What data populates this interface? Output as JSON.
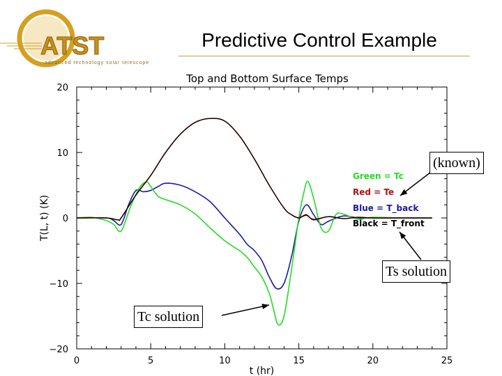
{
  "slide": {
    "title": "Predictive Control Example",
    "logo_text": "ATST",
    "logo_tagline": "advanced technology solar telescope"
  },
  "callouts": {
    "known": "(known)",
    "ts_solution": "Ts solution",
    "tc_solution": "Tc solution"
  },
  "colors": {
    "green": "#22dd22",
    "red": "#b01010",
    "blue": "#1a1aa0",
    "black": "#000000",
    "logo_gold": "#d4a020"
  },
  "chart_data": {
    "type": "line",
    "title": "Top and Bottom Surface Temps",
    "xlabel": "t (hr)",
    "ylabel": "T(L, t) (K)",
    "xlim": [
      0,
      25
    ],
    "ylim": [
      -20,
      20
    ],
    "xticks": [
      0,
      5,
      10,
      15,
      20,
      25
    ],
    "yticks": [
      -20,
      -10,
      0,
      10,
      20
    ],
    "legend": [
      "Green = Tc",
      "Red = Te",
      "Blue = T_back",
      "Black = T_front"
    ],
    "legend_position": "right",
    "series": [
      {
        "name": "Green = Tc",
        "color": "#22dd22",
        "x": [
          0,
          1,
          2,
          2.5,
          3,
          3.6,
          4.2,
          4.7,
          5,
          5.5,
          6,
          7,
          8,
          9,
          10,
          11,
          11.5,
          12,
          12.5,
          13,
          13.3,
          13.6,
          14,
          14.5,
          15,
          15.3,
          15.6,
          16,
          16.5,
          17,
          17.5,
          18,
          19,
          20,
          22,
          24
        ],
        "y": [
          0,
          0.1,
          -0.4,
          -1,
          -2,
          1.5,
          4.5,
          5.5,
          4.8,
          3.3,
          2.8,
          2,
          0.6,
          -1.5,
          -3.5,
          -5,
          -6,
          -7.5,
          -9,
          -11.5,
          -14,
          -16.3,
          -15,
          -8,
          0,
          3.5,
          5.6,
          3,
          -1.5,
          -2,
          0.5,
          0.6,
          -0.2,
          0.1,
          0,
          0
        ]
      },
      {
        "name": "Red = Te",
        "color": "#b01010",
        "x": [
          0,
          2,
          2.8,
          3,
          4,
          5,
          6,
          7,
          8,
          9,
          10,
          11,
          12,
          13,
          14,
          14.5,
          15,
          15.5,
          16,
          17,
          18,
          19,
          20,
          22,
          24
        ],
        "y": [
          0,
          0,
          -0.3,
          0,
          3.5,
          6.5,
          10,
          12.8,
          14.6,
          15.2,
          14.8,
          12.5,
          9,
          5,
          1.5,
          0.5,
          0,
          0.5,
          -0.3,
          0.2,
          -0.1,
          0.1,
          0,
          0,
          0
        ]
      },
      {
        "name": "Blue = T_back",
        "color": "#1a1aa0",
        "x": [
          0,
          2,
          2.5,
          3,
          3.5,
          4,
          4.5,
          5,
          5.5,
          6,
          7,
          8,
          9,
          10,
          11,
          11.5,
          12,
          12.5,
          13,
          13.5,
          14,
          14.5,
          15,
          15.5,
          16,
          16.5,
          17,
          18,
          19,
          20,
          22,
          24
        ],
        "y": [
          0,
          0,
          -0.4,
          -1,
          2,
          4.2,
          4,
          4.2,
          4.8,
          5.3,
          5,
          4,
          2.5,
          0,
          -2.5,
          -4,
          -5,
          -6.5,
          -9,
          -10.8,
          -10,
          -6,
          -0.5,
          2,
          0.5,
          -1,
          -0.5,
          0.3,
          0,
          0,
          0,
          0
        ]
      },
      {
        "name": "Black = T_front",
        "color": "#000000",
        "x": [
          0,
          2,
          2.8,
          3,
          4,
          5,
          6,
          7,
          8,
          9,
          10,
          11,
          12,
          13,
          14,
          14.5,
          15,
          15.5,
          16,
          17,
          18,
          19,
          20,
          22,
          24
        ],
        "y": [
          0,
          0,
          -0.3,
          0,
          3.5,
          6.5,
          10,
          12.8,
          14.6,
          15.2,
          14.8,
          12.5,
          9,
          5,
          1.5,
          0.5,
          0,
          0.4,
          -0.2,
          0.2,
          -0.1,
          0.1,
          0,
          0,
          0
        ]
      }
    ]
  }
}
